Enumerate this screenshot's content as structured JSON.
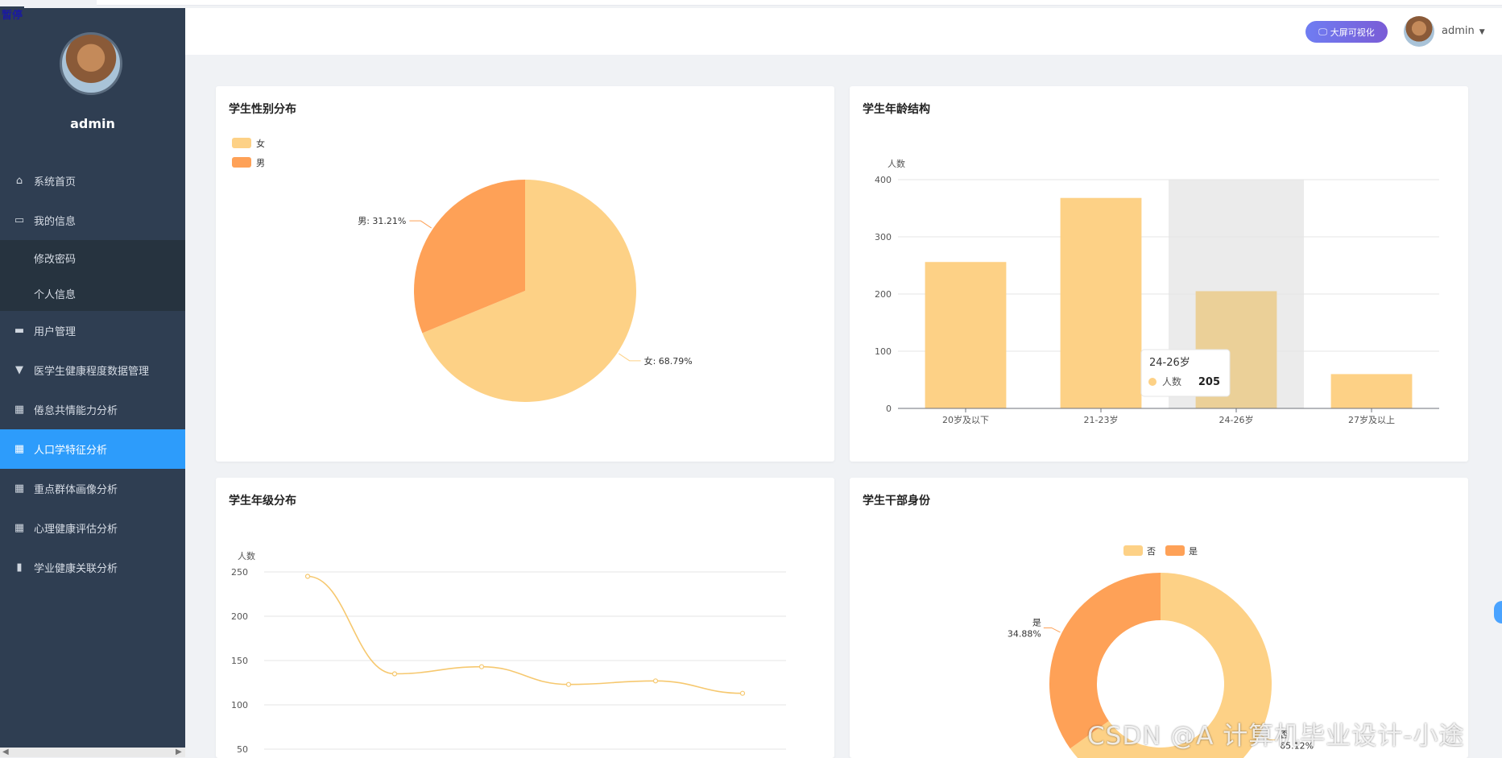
{
  "sidebar": {
    "top_tag": "暂停",
    "username": "admin",
    "items": [
      {
        "label": "系统首页",
        "icon": "home-icon",
        "type": "main"
      },
      {
        "label": "我的信息",
        "icon": "card-icon",
        "type": "main"
      },
      {
        "label": "修改密码",
        "icon": "",
        "type": "sub"
      },
      {
        "label": "个人信息",
        "icon": "",
        "type": "sub"
      },
      {
        "label": "用户管理",
        "icon": "user-manage-icon",
        "type": "main"
      },
      {
        "label": "医学生健康程度数据管理",
        "icon": "cup-icon",
        "type": "main"
      },
      {
        "label": "倦怠共情能力分析",
        "icon": "grid-icon",
        "type": "main"
      },
      {
        "label": "人口学特征分析",
        "icon": "grid-icon",
        "type": "main",
        "active": true
      },
      {
        "label": "重点群体画像分析",
        "icon": "grid-icon",
        "type": "main"
      },
      {
        "label": "心理健康评估分析",
        "icon": "grid-icon",
        "type": "main"
      },
      {
        "label": "学业健康关联分析",
        "icon": "bar-chart-icon",
        "type": "main"
      }
    ]
  },
  "header": {
    "bigscreen_label": "大屏可视化",
    "user_label": "admin"
  },
  "colors": {
    "light": "#fdd186",
    "dark": "#fea157",
    "active_menu": "#2d9cfb",
    "sidebar": "#2f3e52"
  },
  "watermark": "CSDN @A 计算机毕业设计-小途",
  "charts": {
    "gender": {
      "title": "学生性别分布"
    },
    "age": {
      "title": "学生年龄结构"
    },
    "grade": {
      "title": "学生年级分布"
    },
    "cadre": {
      "title": "学生干部身份"
    }
  },
  "chart_data": [
    {
      "id": "gender",
      "type": "pie",
      "title": "学生性别分布",
      "legend": [
        "女",
        "男"
      ],
      "slices": [
        {
          "name": "女",
          "value": 68.79,
          "label": "女: 68.79%"
        },
        {
          "name": "男",
          "value": 31.21,
          "label": "男: 31.21%"
        }
      ]
    },
    {
      "id": "age",
      "type": "bar",
      "title": "学生年龄结构",
      "ylabel": "人数",
      "ylim": [
        0,
        400
      ],
      "yticks": [
        0,
        100,
        200,
        300,
        400
      ],
      "categories": [
        "20岁及以下",
        "21-23岁",
        "24-26岁",
        "27岁及以上"
      ],
      "values": [
        256,
        368,
        205,
        60
      ],
      "tooltip": {
        "category": "24-26岁",
        "series": "人数",
        "value": "205"
      }
    },
    {
      "id": "grade",
      "type": "line",
      "title": "学生年级分布",
      "ylabel": "人数",
      "ylim": [
        50,
        250
      ],
      "yticks": [
        50,
        100,
        150,
        200,
        250
      ],
      "values": [
        245,
        135,
        143,
        123,
        127,
        113
      ]
    },
    {
      "id": "cadre",
      "type": "pie",
      "title": "学生干部身份",
      "legend": [
        "否",
        "是"
      ],
      "slices": [
        {
          "name": "否",
          "value": 65.12,
          "label_name": "否",
          "label_pct": "65.12%"
        },
        {
          "name": "是",
          "value": 34.88,
          "label_name": "是",
          "label_pct": "34.88%"
        }
      ]
    }
  ]
}
